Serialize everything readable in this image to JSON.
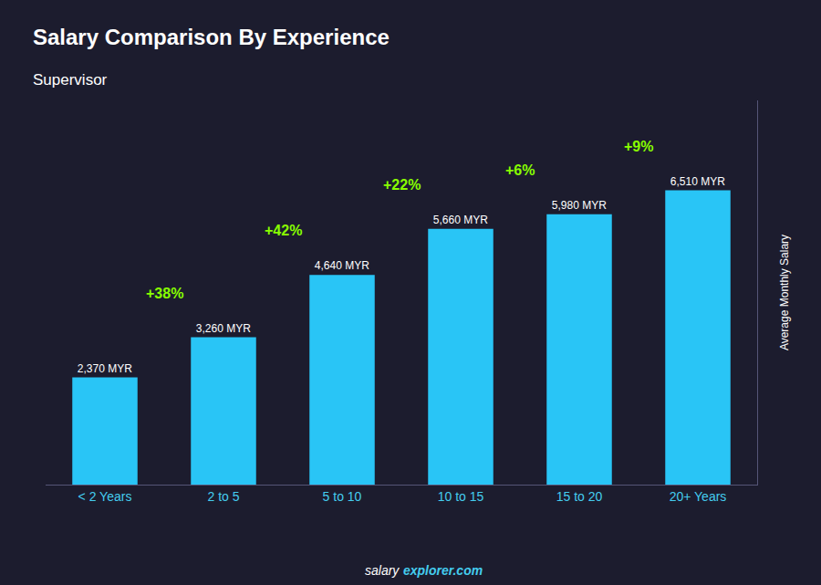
{
  "chart_data": {
    "type": "bar",
    "title": "Salary Comparison By Experience",
    "subtitle": "Supervisor",
    "categories": [
      "< 2 Years",
      "2 to 5",
      "5 to 10",
      "10 to 15",
      "15 to 20",
      "20+ Years"
    ],
    "values": [
      2370,
      3260,
      4640,
      5660,
      5980,
      6510
    ],
    "value_labels": [
      "2,370 MYR",
      "3,260 MYR",
      "4,640 MYR",
      "5,660 MYR",
      "5,980 MYR",
      "6,510 MYR"
    ],
    "data_labels": true,
    "color": "#29C5F6",
    "ylabel": "Average Monthly Salary",
    "ylim": [
      0,
      8500
    ],
    "tick_labels": "x",
    "grid": false,
    "annotations": [
      "+38%",
      "+42%",
      "+22%",
      "+6%",
      "+9%"
    ],
    "footer": [
      "salary",
      "explorer.com"
    ]
  }
}
